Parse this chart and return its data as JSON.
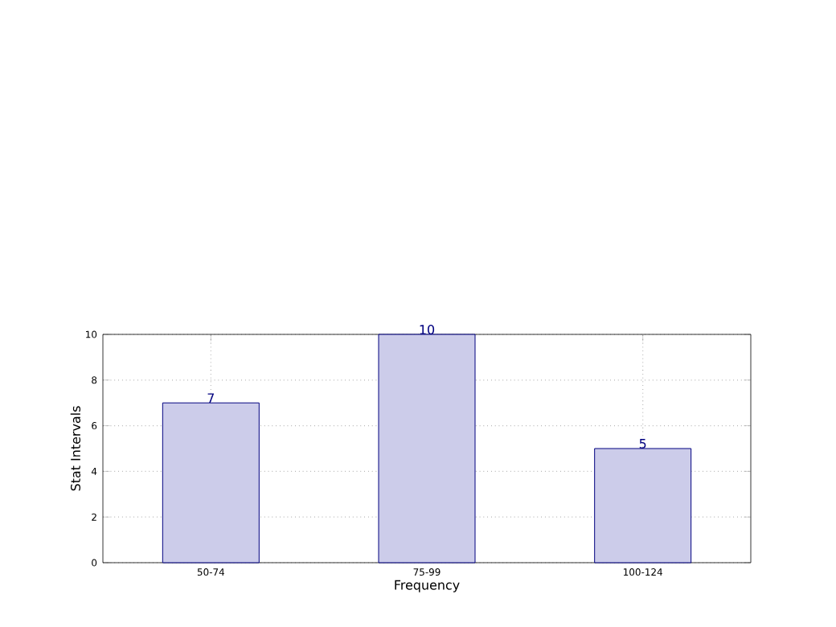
{
  "chart_data": {
    "type": "bar",
    "xlabel": "Frequency",
    "ylabel": "Stat Intervals",
    "categories": [
      "50-74",
      "75-99",
      "100-124"
    ],
    "values": [
      7,
      10,
      5
    ],
    "color": "#ccccea",
    "ylim": [
      0,
      10
    ],
    "yticks": [
      0,
      2,
      4,
      6,
      8,
      10
    ],
    "grid": true,
    "data_labels": true
  }
}
